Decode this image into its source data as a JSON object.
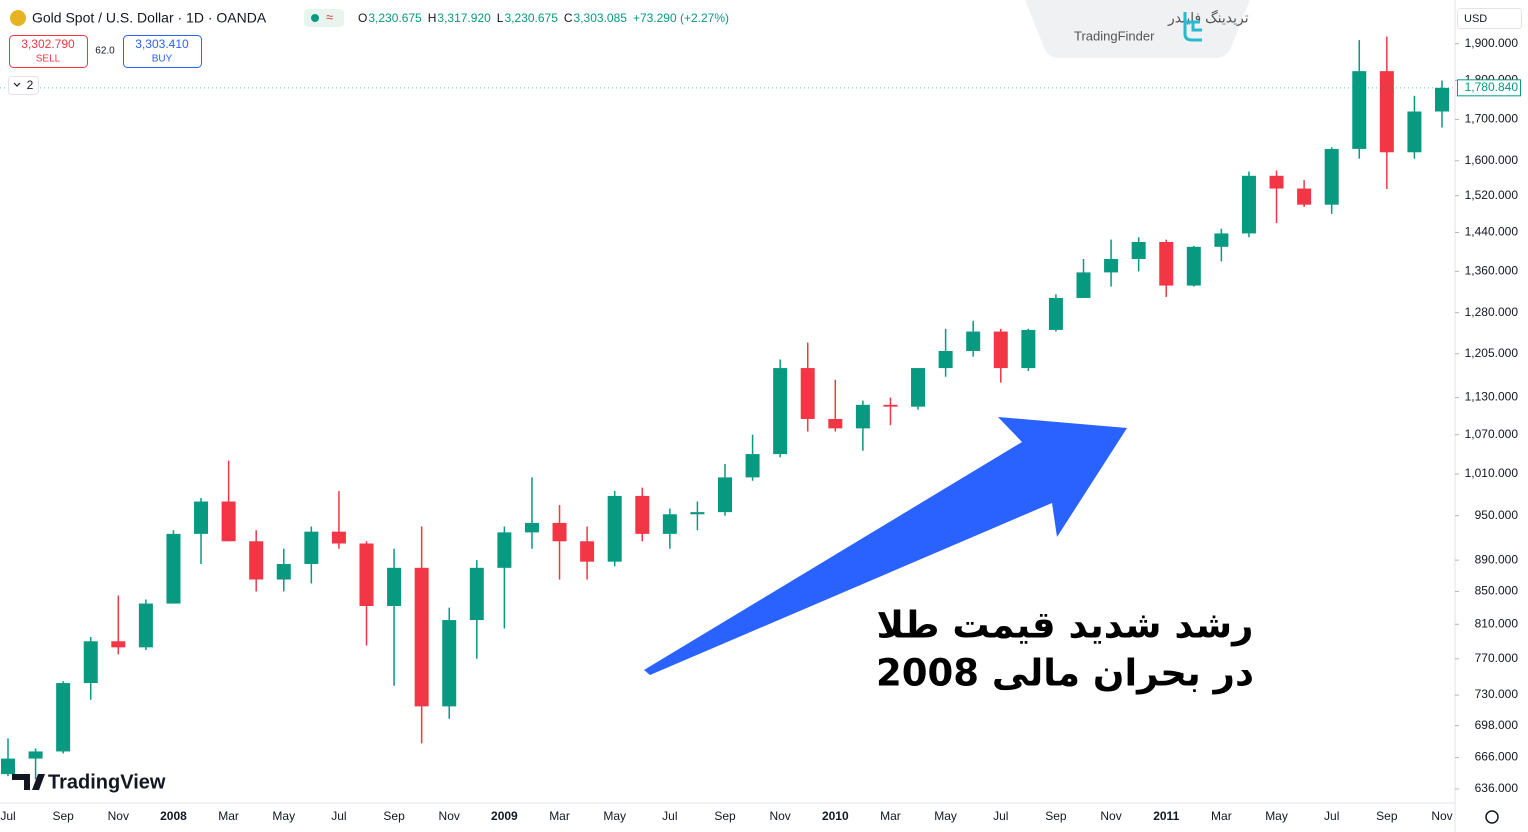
{
  "header": {
    "symbol": "Gold Spot / U.S. Dollar · 1D · OANDA",
    "ohlc": [
      {
        "key": "O",
        "value": "3,230.675"
      },
      {
        "key": "H",
        "value": "3,317.920"
      },
      {
        "key": "L",
        "value": "3,230.675"
      },
      {
        "key": "C",
        "value": "3,303.085"
      }
    ],
    "change": "+73.290 (+2.27%)",
    "sell_price": "3,302.790",
    "sell_label": "SELL",
    "spread": "62.0",
    "buy_price": "3,303.410",
    "buy_label": "BUY",
    "indicators_count": "2",
    "currency": "USD",
    "logo_fa": "تریدینگ فایندر",
    "logo_en": "TradingFinder",
    "watermark": "TradingView"
  },
  "annotation": {
    "lines": [
      "رشد شدید قیمت طلا",
      "در بحران مالی 2008"
    ]
  },
  "chart_data": {
    "type": "candlestick",
    "categories": [
      "Jul",
      null,
      "Sep",
      null,
      "Nov",
      null,
      "2008",
      null,
      "Mar",
      null,
      "May",
      null,
      "Jul",
      null,
      "Sep",
      null,
      "Nov",
      null,
      "2009",
      null,
      "Mar",
      null,
      "May",
      null,
      "Jul",
      null,
      "Sep",
      null,
      "Nov",
      null,
      "2010",
      null,
      "Mar",
      null,
      "May",
      null,
      "Jul",
      null,
      "Sep",
      null,
      "Nov",
      null,
      "2011",
      null,
      "Mar",
      null,
      "May",
      null,
      "Jul",
      null,
      "Sep",
      null,
      "Nov"
    ],
    "open": [
      650,
      665,
      672,
      743,
      790,
      783,
      835,
      925,
      970,
      915,
      865,
      885,
      928,
      912,
      832,
      880,
      718,
      815,
      880,
      927,
      940,
      915,
      888,
      978,
      925,
      952,
      955,
      1005,
      1040,
      1180,
      1095,
      1080,
      1118,
      1115,
      1180,
      1210,
      1245,
      1180,
      1248,
      1308,
      1358,
      1385,
      1420,
      1332,
      1410,
      1438,
      1565,
      1536,
      1500,
      1628,
      1825,
      1620,
      1720
    ],
    "high": [
      685,
      675,
      745,
      795,
      845,
      840,
      930,
      975,
      1030,
      930,
      905,
      935,
      985,
      915,
      905,
      935,
      830,
      890,
      935,
      1005,
      965,
      935,
      985,
      990,
      960,
      970,
      1025,
      1070,
      1195,
      1225,
      1160,
      1125,
      1130,
      1180,
      1250,
      1265,
      1250,
      1250,
      1315,
      1385,
      1425,
      1430,
      1425,
      1412,
      1448,
      1575,
      1577,
      1555,
      1632,
      1910,
      1920,
      1760,
      1800
    ],
    "low": [
      648,
      645,
      670,
      725,
      775,
      780,
      835,
      885,
      915,
      850,
      850,
      860,
      905,
      785,
      740,
      680,
      705,
      770,
      805,
      905,
      865,
      865,
      882,
      915,
      905,
      930,
      950,
      1000,
      1035,
      1075,
      1075,
      1045,
      1085,
      1110,
      1165,
      1200,
      1155,
      1175,
      1245,
      1310,
      1330,
      1360,
      1310,
      1330,
      1380,
      1430,
      1460,
      1495,
      1480,
      1605,
      1535,
      1605,
      1680
    ],
    "close": [
      665,
      672,
      743,
      790,
      783,
      835,
      925,
      970,
      915,
      865,
      885,
      928,
      912,
      832,
      880,
      718,
      815,
      880,
      927,
      940,
      915,
      888,
      978,
      925,
      952,
      955,
      1005,
      1040,
      1180,
      1095,
      1080,
      1118,
      1115,
      1180,
      1210,
      1245,
      1180,
      1248,
      1308,
      1358,
      1385,
      1420,
      1332,
      1410,
      1438,
      1565,
      1536,
      1500,
      1628,
      1825,
      1620,
      1720,
      1780.84
    ],
    "up_color": "#089981",
    "down_color": "#f23645",
    "log_scale": true,
    "ylim": [
      623,
      2026
    ],
    "yticks": [
      {
        "value": 636,
        "label": "636.000"
      },
      {
        "value": 666,
        "label": "666.000"
      },
      {
        "value": 698,
        "label": "698.000"
      },
      {
        "value": 730,
        "label": "730.000"
      },
      {
        "value": 770,
        "label": "770.000"
      },
      {
        "value": 810,
        "label": "810.000"
      },
      {
        "value": 850,
        "label": "850.000"
      },
      {
        "value": 890,
        "label": "890.000"
      },
      {
        "value": 950,
        "label": "950.000"
      },
      {
        "value": 1010,
        "label": "1,010.000"
      },
      {
        "value": 1070,
        "label": "1,070.000"
      },
      {
        "value": 1130,
        "label": "1,130.000"
      },
      {
        "value": 1205,
        "label": "1,205.000"
      },
      {
        "value": 1280,
        "label": "1,280.000"
      },
      {
        "value": 1360,
        "label": "1,360.000"
      },
      {
        "value": 1440,
        "label": "1,440.000"
      },
      {
        "value": 1520,
        "label": "1,520.000"
      },
      {
        "value": 1600,
        "label": "1,600.000"
      },
      {
        "value": 1700,
        "label": "1,700.000"
      },
      {
        "value": 1800,
        "label": "1,800.000"
      },
      {
        "value": 1900,
        "label": "1,900.000"
      }
    ],
    "last_price": {
      "value": 1780.84,
      "label": "1,780.840"
    },
    "grid": false
  }
}
